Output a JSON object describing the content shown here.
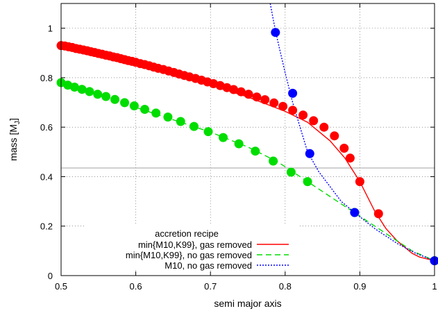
{
  "chart_data": {
    "type": "line",
    "xlabel": "semi major axis",
    "ylabel": "mass [M",
    "ylabel_subscript": "J",
    "ylabel_close": "]",
    "xlim": [
      0.5,
      1.0
    ],
    "ylim": [
      0,
      1.1
    ],
    "x_ticks": [
      "0.5",
      "0.6",
      "0.7",
      "0.8",
      "0.9",
      "1"
    ],
    "x_tick_values": [
      0.5,
      0.6,
      0.7,
      0.8,
      0.9,
      1.0
    ],
    "y_ticks": [
      "0",
      "0.2",
      "0.4",
      "0.6",
      "0.8",
      "1"
    ],
    "y_tick_values": [
      0,
      0.2,
      0.4,
      0.6,
      0.8,
      1.0
    ],
    "grid": "dotted",
    "reference_line_y": 0.435,
    "legend": {
      "title": "accretion recipe",
      "position": "bottom-left",
      "entries": [
        "min{M10,K99}, gas removed",
        "min{M10,K99}, no gas removed",
        "M10, no gas removed"
      ]
    },
    "series": [
      {
        "name": "min{M10,K99}, gas removed",
        "color": "#ff0000",
        "line_style": "solid",
        "curve": [
          [
            0.5,
            0.93
          ],
          [
            0.55,
            0.895
          ],
          [
            0.6,
            0.857
          ],
          [
            0.65,
            0.815
          ],
          [
            0.7,
            0.77
          ],
          [
            0.75,
            0.722
          ],
          [
            0.8,
            0.664
          ],
          [
            0.83,
            0.62
          ],
          [
            0.86,
            0.545
          ],
          [
            0.88,
            0.475
          ],
          [
            0.9,
            0.38
          ],
          [
            0.92,
            0.26
          ],
          [
            0.935,
            0.19
          ],
          [
            0.95,
            0.14
          ],
          [
            0.97,
            0.09
          ],
          [
            0.98,
            0.075
          ],
          [
            1.0,
            0.06
          ]
        ],
        "points": [
          [
            0.5,
            0.93
          ],
          [
            0.505,
            0.928
          ],
          [
            0.51,
            0.925
          ],
          [
            0.515,
            0.922
          ],
          [
            0.52,
            0.918
          ],
          [
            0.525,
            0.915
          ],
          [
            0.53,
            0.912
          ],
          [
            0.535,
            0.909
          ],
          [
            0.54,
            0.905
          ],
          [
            0.545,
            0.902
          ],
          [
            0.55,
            0.898
          ],
          [
            0.555,
            0.895
          ],
          [
            0.56,
            0.891
          ],
          [
            0.565,
            0.888
          ],
          [
            0.57,
            0.884
          ],
          [
            0.575,
            0.881
          ],
          [
            0.58,
            0.877
          ],
          [
            0.585,
            0.873
          ],
          [
            0.59,
            0.869
          ],
          [
            0.595,
            0.866
          ],
          [
            0.6,
            0.862
          ],
          [
            0.606,
            0.857
          ],
          [
            0.612,
            0.853
          ],
          [
            0.618,
            0.848
          ],
          [
            0.624,
            0.843
          ],
          [
            0.63,
            0.838
          ],
          [
            0.637,
            0.833
          ],
          [
            0.644,
            0.827
          ],
          [
            0.651,
            0.821
          ],
          [
            0.658,
            0.815
          ],
          [
            0.665,
            0.809
          ],
          [
            0.672,
            0.803
          ],
          [
            0.68,
            0.797
          ],
          [
            0.688,
            0.79
          ],
          [
            0.696,
            0.783
          ],
          [
            0.704,
            0.776
          ],
          [
            0.713,
            0.768
          ],
          [
            0.722,
            0.76
          ],
          [
            0.731,
            0.752
          ],
          [
            0.741,
            0.743
          ],
          [
            0.751,
            0.733
          ],
          [
            0.762,
            0.722
          ],
          [
            0.773,
            0.711
          ],
          [
            0.785,
            0.698
          ],
          [
            0.797,
            0.684
          ],
          [
            0.81,
            0.668
          ],
          [
            0.824,
            0.649
          ],
          [
            0.838,
            0.626
          ],
          [
            0.852,
            0.6
          ],
          [
            0.866,
            0.565
          ],
          [
            0.879,
            0.515
          ],
          [
            0.887,
            0.475
          ],
          [
            0.9,
            0.38
          ],
          [
            0.925,
            0.25
          ]
        ]
      },
      {
        "name": "min{M10,K99}, no gas removed",
        "color": "#00dd00",
        "line_style": "dashed",
        "curve": [
          [
            0.5,
            0.78
          ],
          [
            0.55,
            0.73
          ],
          [
            0.6,
            0.68
          ],
          [
            0.65,
            0.63
          ],
          [
            0.7,
            0.58
          ],
          [
            0.75,
            0.52
          ],
          [
            0.79,
            0.46
          ],
          [
            0.83,
            0.38
          ],
          [
            0.86,
            0.32
          ],
          [
            0.89,
            0.26
          ],
          [
            0.92,
            0.2
          ],
          [
            0.95,
            0.14
          ],
          [
            0.97,
            0.1
          ],
          [
            1.0,
            0.06
          ]
        ],
        "points": [
          [
            0.5,
            0.78
          ],
          [
            0.509,
            0.77
          ],
          [
            0.518,
            0.762
          ],
          [
            0.528,
            0.753
          ],
          [
            0.538,
            0.744
          ],
          [
            0.549,
            0.733
          ],
          [
            0.56,
            0.724
          ],
          [
            0.572,
            0.712
          ],
          [
            0.585,
            0.699
          ],
          [
            0.598,
            0.686
          ],
          [
            0.612,
            0.672
          ],
          [
            0.627,
            0.657
          ],
          [
            0.643,
            0.641
          ],
          [
            0.66,
            0.623
          ],
          [
            0.678,
            0.603
          ],
          [
            0.697,
            0.582
          ],
          [
            0.717,
            0.558
          ],
          [
            0.738,
            0.533
          ],
          [
            0.76,
            0.503
          ],
          [
            0.784,
            0.463
          ],
          [
            0.808,
            0.418
          ],
          [
            0.83,
            0.38
          ],
          [
            0.893,
            0.255
          ],
          [
            1.0,
            0.06
          ]
        ]
      },
      {
        "name": "M10, no gas removed",
        "color": "#0000ff",
        "line_style": "dotted",
        "curve": [
          [
            0.78,
            1.1
          ],
          [
            0.785,
            1.02
          ],
          [
            0.79,
            0.95
          ],
          [
            0.8,
            0.82
          ],
          [
            0.81,
            0.7
          ],
          [
            0.82,
            0.6
          ],
          [
            0.83,
            0.5
          ],
          [
            0.845,
            0.42
          ],
          [
            0.86,
            0.36
          ],
          [
            0.875,
            0.3
          ],
          [
            0.893,
            0.255
          ],
          [
            0.92,
            0.19
          ],
          [
            0.95,
            0.13
          ],
          [
            0.975,
            0.09
          ],
          [
            1.0,
            0.06
          ]
        ],
        "points": [
          [
            0.787,
            0.983
          ],
          [
            0.81,
            0.737
          ],
          [
            0.833,
            0.493
          ],
          [
            0.893,
            0.255
          ],
          [
            1.0,
            0.06
          ]
        ]
      }
    ]
  }
}
